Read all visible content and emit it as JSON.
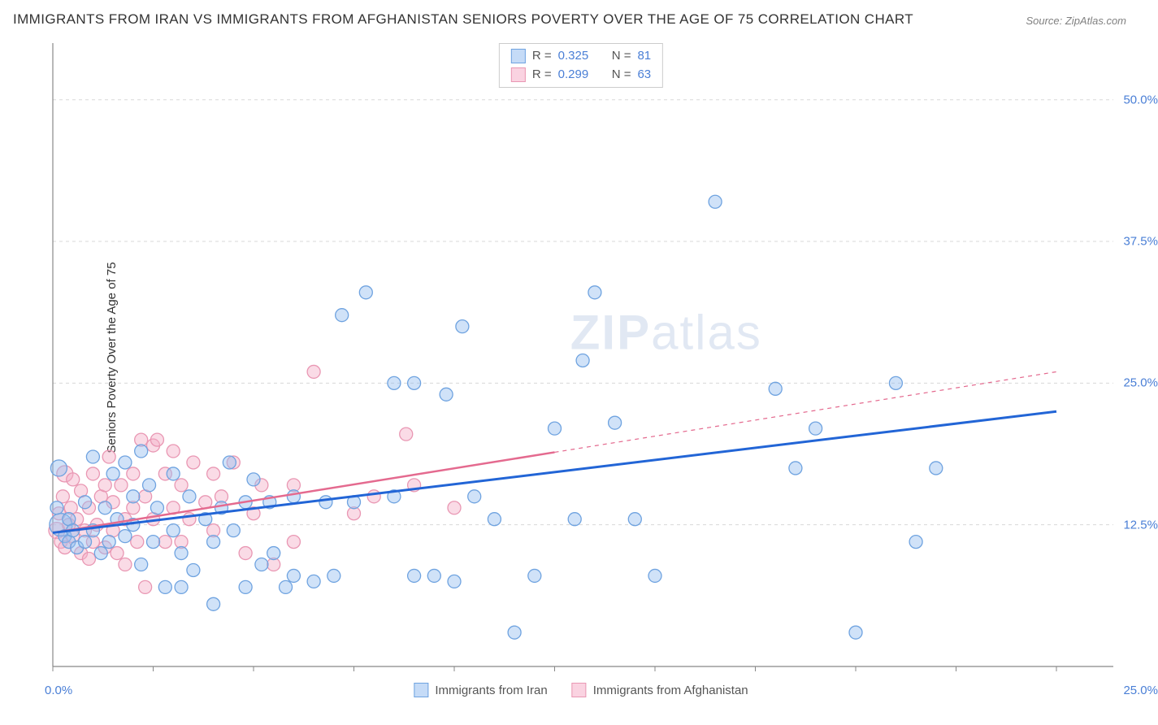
{
  "title": "IMMIGRANTS FROM IRAN VS IMMIGRANTS FROM AFGHANISTAN SENIORS POVERTY OVER THE AGE OF 75 CORRELATION CHART",
  "source": "Source: ZipAtlas.com",
  "watermark_bold": "ZIP",
  "watermark_rest": "atlas",
  "chart": {
    "type": "scatter",
    "y_axis_label": "Seniors Poverty Over the Age of 75",
    "xlim": [
      0,
      25
    ],
    "ylim": [
      0,
      55
    ],
    "x_ticks": [
      0,
      25
    ],
    "x_tick_labels": [
      "0.0%",
      "25.0%"
    ],
    "x_minor_ticks": [
      2.5,
      5,
      7.5,
      10,
      12.5,
      15,
      17.5,
      20,
      22.5
    ],
    "y_ticks": [
      12.5,
      25.0,
      37.5,
      50.0
    ],
    "y_tick_labels": [
      "12.5%",
      "25.0%",
      "37.5%",
      "50.0%"
    ],
    "grid_color": "#d8d8d8",
    "grid_dash": "4,4",
    "axis_color": "#888888",
    "background_color": "#ffffff",
    "series": [
      {
        "name": "Immigrants from Iran",
        "color_fill": "rgba(150,190,240,0.45)",
        "color_stroke": "#6fa3e0",
        "trend_color": "#2265d6",
        "trend_width": 3,
        "trend_solid_to_x": 25,
        "trend_y0": 11.8,
        "trend_y1_at25": 22.5,
        "R": "0.325",
        "N": "81",
        "points": [
          [
            0.2,
            12.5,
            14
          ],
          [
            0.1,
            14,
            8
          ],
          [
            0.3,
            11.5,
            8
          ],
          [
            0.15,
            17.5,
            10
          ],
          [
            0.4,
            13,
            8
          ],
          [
            0.4,
            11,
            8
          ],
          [
            0.5,
            12,
            8
          ],
          [
            0.6,
            10.5,
            8
          ],
          [
            0.8,
            14.5,
            8
          ],
          [
            0.8,
            11,
            8
          ],
          [
            1.0,
            18.5,
            8
          ],
          [
            1.0,
            12,
            8
          ],
          [
            1.2,
            10,
            8
          ],
          [
            1.3,
            14,
            8
          ],
          [
            1.4,
            11,
            8
          ],
          [
            1.5,
            17,
            8
          ],
          [
            1.6,
            13,
            8
          ],
          [
            1.8,
            18,
            8
          ],
          [
            1.8,
            11.5,
            8
          ],
          [
            2.0,
            15,
            8
          ],
          [
            2.0,
            12.5,
            8
          ],
          [
            2.2,
            9,
            8
          ],
          [
            2.2,
            19,
            8
          ],
          [
            2.4,
            16,
            8
          ],
          [
            2.5,
            11,
            8
          ],
          [
            2.6,
            14,
            8
          ],
          [
            2.8,
            7,
            8
          ],
          [
            3.0,
            12,
            8
          ],
          [
            3.0,
            17,
            8
          ],
          [
            3.2,
            10,
            8
          ],
          [
            3.2,
            7,
            8
          ],
          [
            3.4,
            15,
            8
          ],
          [
            3.5,
            8.5,
            8
          ],
          [
            3.8,
            13,
            8
          ],
          [
            4.0,
            11,
            8
          ],
          [
            4.0,
            5.5,
            8
          ],
          [
            4.2,
            14,
            8
          ],
          [
            4.4,
            18,
            8
          ],
          [
            4.5,
            12,
            8
          ],
          [
            4.8,
            14.5,
            8
          ],
          [
            4.8,
            7,
            8
          ],
          [
            5.0,
            16.5,
            8
          ],
          [
            5.2,
            9,
            8
          ],
          [
            5.4,
            14.5,
            8
          ],
          [
            5.5,
            10,
            8
          ],
          [
            5.8,
            7,
            8
          ],
          [
            6.0,
            8,
            8
          ],
          [
            6.0,
            15,
            8
          ],
          [
            6.5,
            7.5,
            8
          ],
          [
            6.8,
            14.5,
            8
          ],
          [
            7.0,
            8,
            8
          ],
          [
            7.2,
            31,
            8
          ],
          [
            7.5,
            14.5,
            8
          ],
          [
            7.8,
            33,
            8
          ],
          [
            8.5,
            25,
            8
          ],
          [
            8.5,
            15,
            8
          ],
          [
            9.0,
            25,
            8
          ],
          [
            9.0,
            8,
            8
          ],
          [
            9.5,
            8,
            8
          ],
          [
            9.8,
            24,
            8
          ],
          [
            10,
            7.5,
            8
          ],
          [
            10.2,
            30,
            8
          ],
          [
            10.5,
            15,
            8
          ],
          [
            11,
            13,
            8
          ],
          [
            11.5,
            3,
            8
          ],
          [
            12,
            8,
            8
          ],
          [
            12.5,
            21,
            8
          ],
          [
            13,
            13,
            8
          ],
          [
            13.2,
            27,
            8
          ],
          [
            13.5,
            33,
            8
          ],
          [
            14,
            21.5,
            8
          ],
          [
            14.5,
            13,
            8
          ],
          [
            15,
            8,
            8
          ],
          [
            16.5,
            41,
            8
          ],
          [
            18,
            24.5,
            8
          ],
          [
            18.5,
            17.5,
            8
          ],
          [
            19,
            21,
            8
          ],
          [
            20,
            3,
            8
          ],
          [
            21,
            25,
            8
          ],
          [
            21.5,
            11,
            8
          ],
          [
            22,
            17.5,
            8
          ]
        ]
      },
      {
        "name": "Immigrants from Afghanistan",
        "color_fill": "rgba(245,175,200,0.45)",
        "color_stroke": "#e997b3",
        "trend_color": "#e46a8f",
        "trend_width": 2.5,
        "trend_solid_to_x": 12.5,
        "trend_y0": 11.8,
        "trend_y1_at25": 26,
        "R": "0.299",
        "N": "63",
        "points": [
          [
            0.1,
            12,
            10
          ],
          [
            0.15,
            13.5,
            8
          ],
          [
            0.2,
            11,
            8
          ],
          [
            0.25,
            15,
            8
          ],
          [
            0.3,
            17,
            10
          ],
          [
            0.3,
            10.5,
            8
          ],
          [
            0.4,
            12.5,
            8
          ],
          [
            0.45,
            14,
            8
          ],
          [
            0.5,
            11.5,
            8
          ],
          [
            0.5,
            16.5,
            8
          ],
          [
            0.6,
            13,
            8
          ],
          [
            0.7,
            10,
            8
          ],
          [
            0.7,
            15.5,
            8
          ],
          [
            0.8,
            12,
            8
          ],
          [
            0.9,
            14,
            8
          ],
          [
            0.9,
            9.5,
            8
          ],
          [
            1.0,
            11,
            8
          ],
          [
            1.0,
            17,
            8
          ],
          [
            1.1,
            12.5,
            8
          ],
          [
            1.2,
            15,
            8
          ],
          [
            1.3,
            10.5,
            8
          ],
          [
            1.3,
            16,
            8
          ],
          [
            1.4,
            18.5,
            8
          ],
          [
            1.5,
            12,
            8
          ],
          [
            1.5,
            14.5,
            8
          ],
          [
            1.6,
            10,
            8
          ],
          [
            1.7,
            16,
            8
          ],
          [
            1.8,
            13,
            8
          ],
          [
            1.8,
            9,
            8
          ],
          [
            2.0,
            17,
            8
          ],
          [
            2.0,
            14,
            8
          ],
          [
            2.1,
            11,
            8
          ],
          [
            2.2,
            20,
            8
          ],
          [
            2.3,
            15,
            8
          ],
          [
            2.3,
            7,
            8
          ],
          [
            2.5,
            19.5,
            8
          ],
          [
            2.5,
            13,
            8
          ],
          [
            2.6,
            20,
            8
          ],
          [
            2.8,
            17,
            8
          ],
          [
            2.8,
            11,
            8
          ],
          [
            3.0,
            14,
            8
          ],
          [
            3.0,
            19,
            8
          ],
          [
            3.2,
            16,
            8
          ],
          [
            3.2,
            11,
            8
          ],
          [
            3.4,
            13,
            8
          ],
          [
            3.5,
            18,
            8
          ],
          [
            3.8,
            14.5,
            8
          ],
          [
            4.0,
            17,
            8
          ],
          [
            4.0,
            12,
            8
          ],
          [
            4.2,
            15,
            8
          ],
          [
            4.5,
            18,
            8
          ],
          [
            4.8,
            10,
            8
          ],
          [
            5.0,
            13.5,
            8
          ],
          [
            5.2,
            16,
            8
          ],
          [
            5.5,
            9,
            8
          ],
          [
            6.0,
            11,
            8
          ],
          [
            6.0,
            16,
            8
          ],
          [
            6.5,
            26,
            8
          ],
          [
            7.5,
            13.5,
            8
          ],
          [
            8.0,
            15,
            8
          ],
          [
            8.8,
            20.5,
            8
          ],
          [
            9.0,
            16,
            8
          ],
          [
            10,
            14,
            8
          ]
        ]
      }
    ],
    "x_legend": [
      {
        "label": "Immigrants from Iran",
        "fill": "rgba(150,190,240,0.55)",
        "stroke": "#6fa3e0"
      },
      {
        "label": "Immigrants from Afghanistan",
        "fill": "rgba(245,175,200,0.55)",
        "stroke": "#e997b3"
      }
    ],
    "stat_legend": [
      {
        "fill": "rgba(150,190,240,0.55)",
        "stroke": "#6fa3e0",
        "R_label": "R =",
        "R_val": "0.325",
        "N_label": "N =",
        "N_val": "81"
      },
      {
        "fill": "rgba(245,175,200,0.55)",
        "stroke": "#e997b3",
        "R_label": "R =",
        "R_val": "0.299",
        "N_label": "N =",
        "N_val": "63"
      }
    ]
  }
}
